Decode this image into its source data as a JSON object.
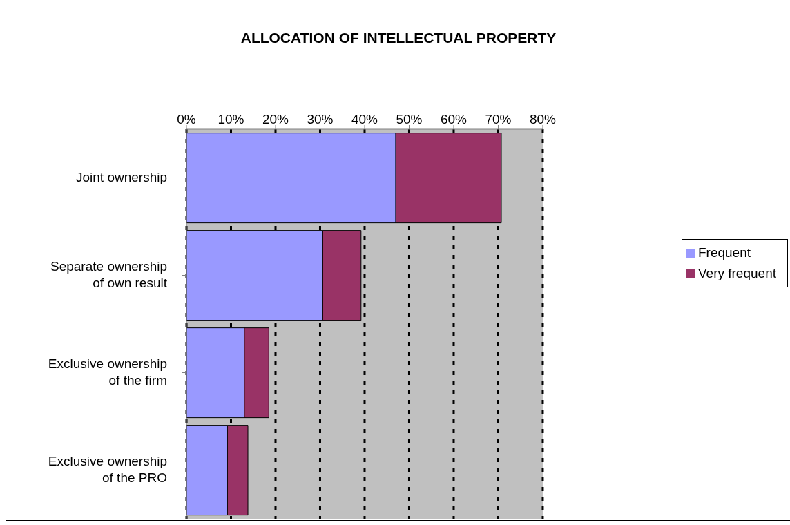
{
  "chart_data": {
    "type": "bar",
    "orientation": "horizontal",
    "stacked": true,
    "title": "ALLOCATION OF INTELLECTUAL PROPERTY",
    "categories": [
      "Joint ownership",
      "Separate ownership of own result",
      "Exclusive ownership of the firm",
      "Exclusive ownership of the PRO"
    ],
    "series": [
      {
        "name": "Frequent",
        "color": "#9999ff",
        "values": [
          47.0,
          30.6,
          13.0,
          9.2
        ]
      },
      {
        "name": "Very frequent",
        "color": "#993366",
        "values": [
          23.7,
          8.6,
          5.5,
          4.6
        ]
      }
    ],
    "xlim": [
      0,
      80
    ],
    "xticks": [
      {
        "value": 0,
        "label": "0%"
      },
      {
        "value": 10,
        "label": "10%"
      },
      {
        "value": 20,
        "label": "20%"
      },
      {
        "value": 30,
        "label": "30%"
      },
      {
        "value": 40,
        "label": "40%"
      },
      {
        "value": 50,
        "label": "50%"
      },
      {
        "value": 60,
        "label": "60%"
      },
      {
        "value": 70,
        "label": "70%"
      },
      {
        "value": 80,
        "label": "80%"
      }
    ],
    "grid": "x",
    "legend": "right"
  }
}
